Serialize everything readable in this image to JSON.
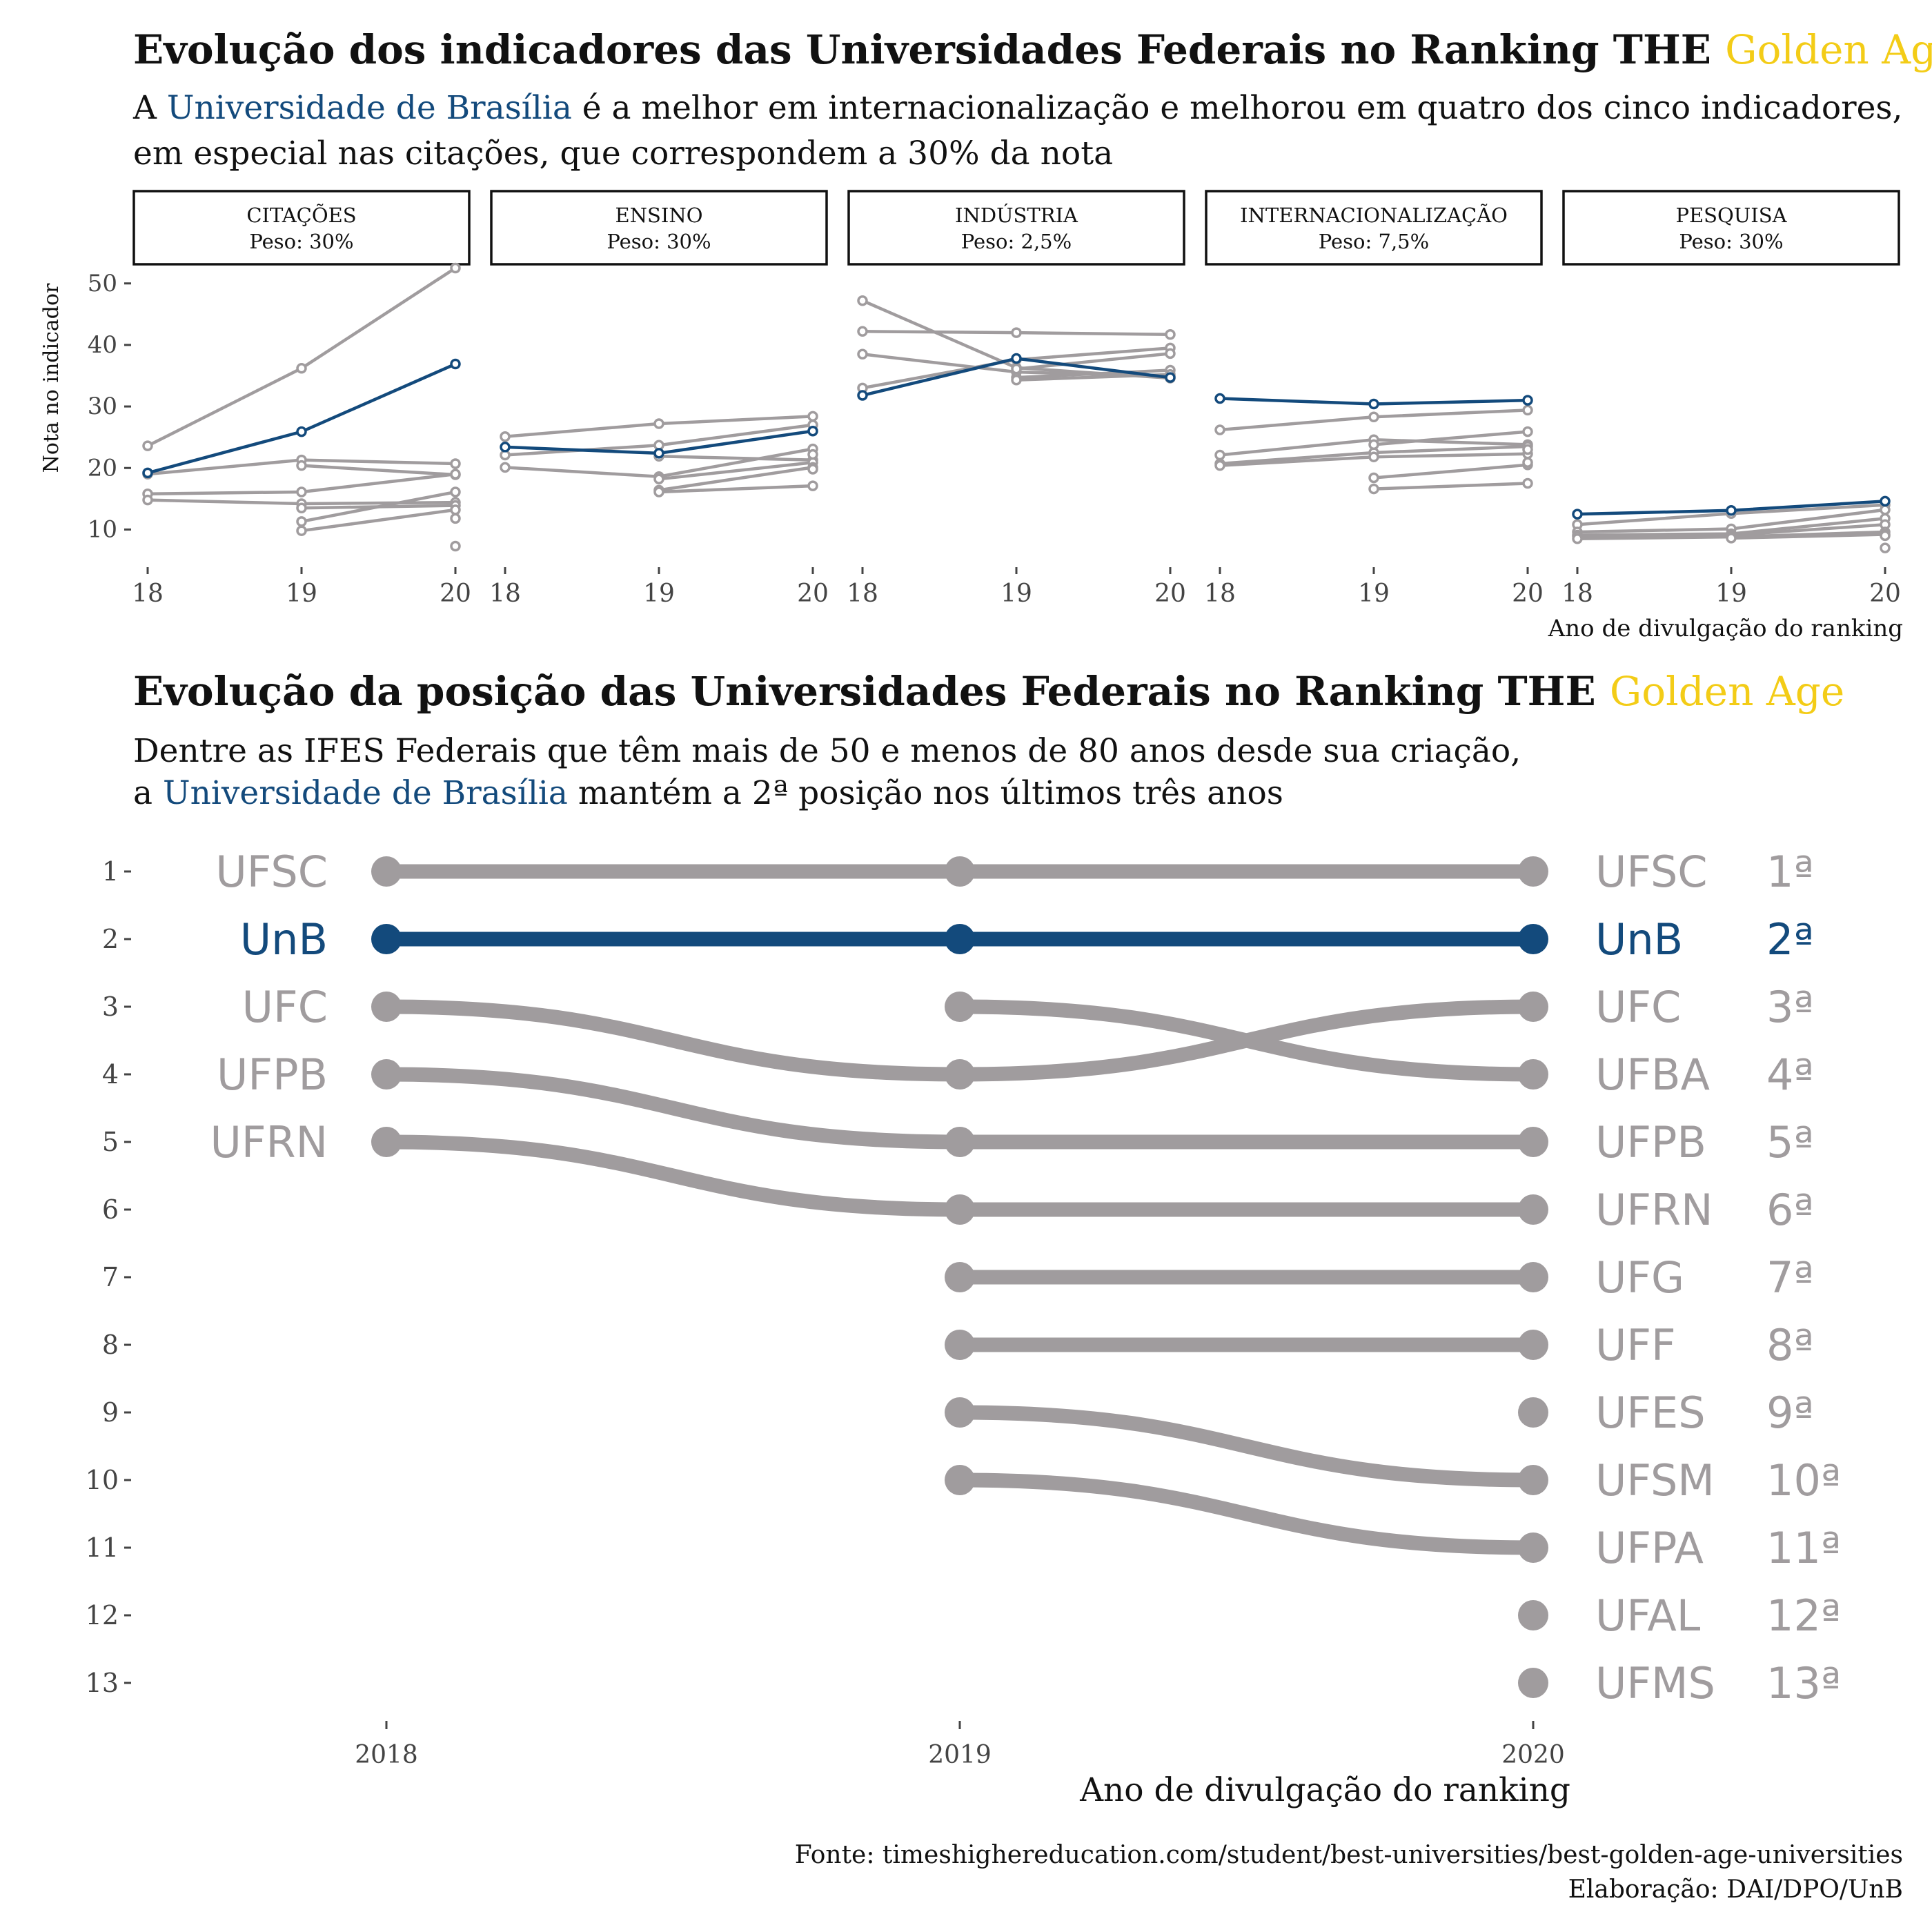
{
  "colors": {
    "highlight": "#134a7c",
    "grey": "#a09c9e",
    "gold": "#f3cc17",
    "text": "#111111",
    "axis": "#444444"
  },
  "top": {
    "title_main": "Evolução dos indicadores das Universidades Federais no Ranking THE ",
    "title_accent": "Golden Age",
    "subtitle_line1_pre": "A ",
    "subtitle_line1_accent": "Universidade de Brasília",
    "subtitle_line1_post": " é a melhor em internacionalização e melhorou em quatro dos cinco indicadores,",
    "subtitle_line2": "em especial nas citações, que correspondem a 30% da nota",
    "ylabel": "Nota no indicador",
    "xlabel": "Ano de divulgação do ranking"
  },
  "bottom": {
    "title_main": "Evolução da posição das Universidades Federais no Ranking THE ",
    "title_accent": "Golden Age",
    "subtitle_line1": "Dentre as IFES Federais que têm mais de 50 e menos de 80 anos desde sua criação,",
    "subtitle_line2_pre": "a ",
    "subtitle_line2_accent": "Universidade de Brasília",
    "subtitle_line2_post": " mantém a 2ª posição nos últimos três anos",
    "xlabel": "Ano de divulgação do ranking"
  },
  "footer": {
    "source": "Fonte: timeshighereducation.com/student/best-universities/best-golden-age-universities",
    "credit": "Elaboração: DAI/DPO/UnB"
  },
  "chart_data": [
    {
      "type": "line",
      "subtype": "small-multiples",
      "x_tick_labels": [
        "18",
        "19",
        "20"
      ],
      "x": [
        2018,
        2019,
        2020
      ],
      "ylim": [
        5,
        53
      ],
      "y_ticks": [
        10,
        20,
        30,
        40,
        50
      ],
      "ylabel": "Nota no indicador",
      "xlabel": "Ano de divulgação do ranking",
      "grid": false,
      "highlight_series": "UnB",
      "panels": [
        {
          "label": "CITAÇÕES",
          "weight": "Peso: 30%",
          "series": [
            {
              "values": [
                23.6,
                36.2,
                52.5
              ]
            },
            {
              "name": "UnB",
              "values": [
                19.2,
                25.9,
                36.9
              ]
            },
            {
              "values": [
                19.0,
                21.3,
                20.7
              ]
            },
            {
              "values": [
                null,
                20.4,
                18.9
              ]
            },
            {
              "values": [
                15.8,
                16.1,
                19.0
              ]
            },
            {
              "values": [
                14.8,
                14.2,
                14.4
              ]
            },
            {
              "values": [
                null,
                13.5,
                13.9
              ]
            },
            {
              "values": [
                null,
                11.3,
                16.1
              ]
            },
            {
              "values": [
                null,
                9.8,
                13.2
              ]
            },
            {
              "values": [
                null,
                null,
                11.8
              ]
            },
            {
              "values": [
                null,
                null,
                7.3
              ]
            }
          ]
        },
        {
          "label": "ENSINO",
          "weight": "Peso: 30%",
          "series": [
            {
              "values": [
                25.1,
                27.2,
                28.4
              ]
            },
            {
              "name": "UnB",
              "values": [
                23.4,
                22.4,
                26.0
              ]
            },
            {
              "values": [
                22.1,
                23.7,
                27.0
              ]
            },
            {
              "values": [
                20.1,
                18.6,
                23.1
              ]
            },
            {
              "values": [
                null,
                21.9,
                21.3
              ]
            },
            {
              "values": [
                null,
                18.2,
                20.9
              ]
            },
            {
              "values": [
                null,
                16.4,
                20.1
              ]
            },
            {
              "values": [
                null,
                16.1,
                17.1
              ]
            },
            {
              "values": [
                null,
                null,
                22.2
              ]
            },
            {
              "values": [
                null,
                null,
                19.8
              ]
            }
          ]
        },
        {
          "label": "INDÚSTRIA",
          "weight": "Peso: 2,5%",
          "series": [
            {
              "values": [
                47.2,
                36.3,
                34.6
              ]
            },
            {
              "values": [
                42.2,
                42.0,
                41.7
              ]
            },
            {
              "values": [
                38.5,
                35.6,
                34.9
              ]
            },
            {
              "values": [
                33.0,
                37.6,
                39.5
              ]
            },
            {
              "name": "UnB",
              "values": [
                31.8,
                37.8,
                34.7
              ]
            },
            {
              "values": [
                null,
                36.1,
                38.6
              ]
            },
            {
              "values": [
                null,
                34.7,
                35.9
              ]
            },
            {
              "values": [
                null,
                34.3,
                35.2
              ]
            }
          ]
        },
        {
          "label": "INTERNACIONALIZAÇÃO",
          "weight": "Peso: 7,5%",
          "series": [
            {
              "name": "UnB",
              "values": [
                31.3,
                30.4,
                31.0
              ]
            },
            {
              "values": [
                26.2,
                28.3,
                29.4
              ]
            },
            {
              "values": [
                22.1,
                24.6,
                23.8
              ]
            },
            {
              "values": [
                20.7,
                22.5,
                23.5
              ]
            },
            {
              "values": [
                20.4,
                21.8,
                22.3
              ]
            },
            {
              "values": [
                null,
                23.8,
                25.9
              ]
            },
            {
              "values": [
                null,
                18.4,
                20.5
              ]
            },
            {
              "values": [
                null,
                16.6,
                17.5
              ]
            },
            {
              "values": [
                null,
                null,
                20.9
              ]
            },
            {
              "values": [
                null,
                null,
                23.0
              ]
            }
          ]
        },
        {
          "label": "PESQUISA",
          "weight": "Peso: 30%",
          "series": [
            {
              "name": "UnB",
              "values": [
                12.5,
                13.1,
                14.6
              ]
            },
            {
              "values": [
                10.8,
                12.6,
                14.0
              ]
            },
            {
              "values": [
                9.6,
                10.1,
                13.2
              ]
            },
            {
              "values": [
                9.1,
                9.3,
                11.8
              ]
            },
            {
              "values": [
                8.9,
                9.1,
                10.8
              ]
            },
            {
              "values": [
                8.5,
                8.8,
                9.6
              ]
            },
            {
              "values": [
                null,
                8.6,
                9.2
              ]
            },
            {
              "values": [
                null,
                null,
                9.0
              ]
            },
            {
              "values": [
                null,
                null,
                7.0
              ]
            }
          ]
        }
      ]
    },
    {
      "type": "line",
      "subtype": "bump",
      "x": [
        2018,
        2019,
        2020
      ],
      "ylim": [
        1,
        13
      ],
      "y_ticks": [
        "1",
        "2",
        "3",
        "4",
        "5",
        "6",
        "7",
        "8",
        "9",
        "10",
        "11",
        "12",
        "13"
      ],
      "y_reversed": true,
      "xlabel": "Ano de divulgação do ranking",
      "highlight_series": "UnB",
      "series": [
        {
          "name": "UFSC",
          "values": [
            1,
            1,
            1
          ],
          "rank_label": "1ª"
        },
        {
          "name": "UnB",
          "values": [
            2,
            2,
            2
          ],
          "rank_label": "2ª"
        },
        {
          "name": "UFC",
          "values": [
            3,
            4,
            3
          ],
          "rank_label": "3ª"
        },
        {
          "name": "UFBA",
          "values": [
            null,
            3,
            4
          ],
          "rank_label": "4ª"
        },
        {
          "name": "UFPB",
          "values": [
            4,
            5,
            5
          ],
          "rank_label": "5ª"
        },
        {
          "name": "UFRN",
          "values": [
            5,
            6,
            6
          ],
          "rank_label": "6ª"
        },
        {
          "name": "UFG",
          "values": [
            null,
            7,
            7
          ],
          "rank_label": "7ª"
        },
        {
          "name": "UFF",
          "values": [
            null,
            8,
            8
          ],
          "rank_label": "8ª"
        },
        {
          "name": "UFES",
          "values": [
            null,
            null,
            9
          ],
          "rank_label": "9ª"
        },
        {
          "name": "UFSM",
          "values": [
            null,
            9,
            10
          ],
          "rank_label": "10ª"
        },
        {
          "name": "UFPA",
          "values": [
            null,
            10,
            11
          ],
          "rank_label": "11ª"
        },
        {
          "name": "UFAL",
          "values": [
            null,
            null,
            12
          ],
          "rank_label": "12ª"
        },
        {
          "name": "UFMS",
          "values": [
            null,
            null,
            13
          ],
          "rank_label": "13ª"
        }
      ]
    }
  ]
}
